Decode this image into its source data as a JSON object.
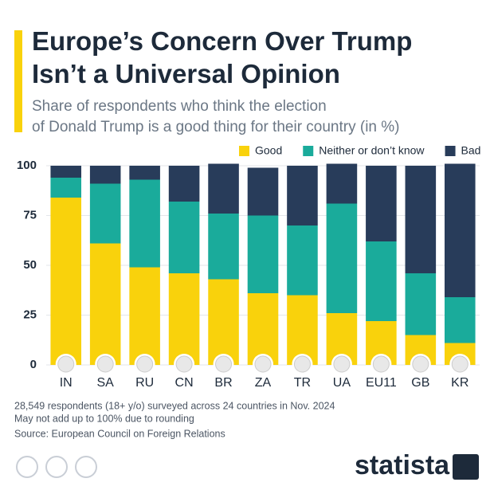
{
  "chart_data": {
    "type": "stacked_bar",
    "title": [
      "Europe’s Concern Over Trump",
      "Isn’t a Universal Opinion"
    ],
    "subtitle": [
      "Share of respondents who think the election",
      "of Donald Trump is a good thing for their country (in %)"
    ],
    "categories": [
      "IN",
      "SA",
      "RU",
      "CN",
      "BR",
      "ZA",
      "TR",
      "UA",
      "EU11",
      "GB",
      "KR"
    ],
    "series": [
      {
        "name": "Good",
        "color": "#f9d20c",
        "values": [
          84,
          61,
          49,
          46,
          43,
          36,
          35,
          26,
          22,
          15,
          11
        ]
      },
      {
        "name": "Neither or don’t know",
        "color": "#1aab9b",
        "values": [
          10,
          30,
          44,
          36,
          33,
          39,
          35,
          55,
          40,
          31,
          23
        ]
      },
      {
        "name": "Bad",
        "color": "#283c5a",
        "values": [
          6,
          9,
          7,
          18,
          25,
          24,
          30,
          20,
          38,
          54,
          67
        ]
      }
    ],
    "ylim": [
      0,
      100
    ],
    "yticks": [
      0,
      25,
      50,
      75,
      100
    ],
    "grid": true,
    "notes": [
      "28,549 respondents (18+ y/o) surveyed across 24 countries in Nov. 2024",
      "May not add up to 100% due to rounding"
    ],
    "source": "Source: European Council on Foreign Relations",
    "brand": "statista"
  }
}
